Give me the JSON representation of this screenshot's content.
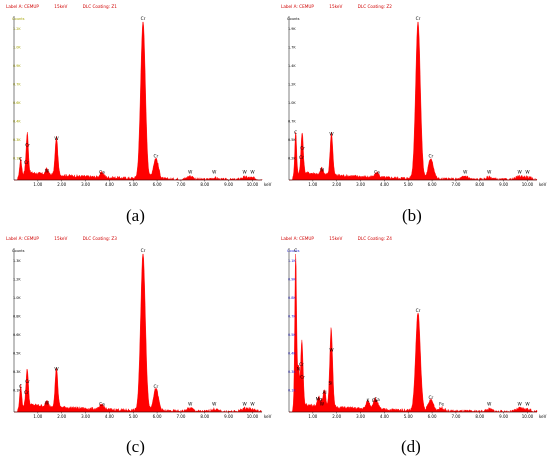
{
  "colors": {
    "spectrum": "#ff0000",
    "header": "#d00000",
    "axis": "#000000",
    "ytick_olive": "#a3a300",
    "ytick_blue": "#1b1bd8"
  },
  "chart_data": [
    {
      "type": "area",
      "caption": "(a)",
      "header": {
        "label": "Label A: CEMUP",
        "kv": "15keV",
        "sample": "DLC Coating: Z1"
      },
      "ylabel": "Counts",
      "xlabel": "keV",
      "xlim": [
        0,
        10.4
      ],
      "ylim": [
        0,
        1
      ],
      "xticks": [
        "1.00",
        "2.00",
        "3.00",
        "4.00",
        "5.00",
        "6.00",
        "7.00",
        "8.00",
        "9.00",
        "10.00"
      ],
      "yticks": [
        "1.2K",
        "1.0K",
        "0.9K",
        "0.7K",
        "0.6K",
        "0.4K",
        "0.3K",
        "0.1K"
      ],
      "ytick_color": "olive",
      "peaks": [
        {
          "x": 0.28,
          "y": 0.11,
          "label": "C"
        },
        {
          "x": 0.52,
          "y": 0.09,
          "label": "Cr"
        },
        {
          "x": 0.57,
          "y": 0.2,
          "label": "Cr"
        },
        {
          "x": 1.78,
          "y": 0.24,
          "label": "W"
        },
        {
          "x": 1.38,
          "y": 0.035,
          "label": "W"
        },
        {
          "x": 3.69,
          "y": 0.03,
          "label": "Ca"
        },
        {
          "x": 5.41,
          "y": 1.0,
          "label": "Cr"
        },
        {
          "x": 5.95,
          "y": 0.13,
          "label": "Cr"
        },
        {
          "x": 7.39,
          "y": 0.02,
          "label": "W"
        },
        {
          "x": 8.4,
          "y": 0.01,
          "label": "W"
        },
        {
          "x": 9.67,
          "y": 0.015,
          "label": "W"
        },
        {
          "x": 10.0,
          "y": 0.01,
          "label": "W"
        }
      ]
    },
    {
      "type": "area",
      "caption": "(b)",
      "header": {
        "label": "Label A: CEMUP",
        "kv": "15keV",
        "sample": "DLC Coating: Z2"
      },
      "ylabel": "Counts",
      "xlabel": "keV",
      "xlim": [
        0,
        10.4
      ],
      "ylim": [
        0,
        1
      ],
      "xticks": [
        "1.00",
        "2.00",
        "3.00",
        "4.00",
        "5.00",
        "6.00",
        "7.00",
        "8.00",
        "9.00",
        "10.00"
      ],
      "yticks": [
        "1.9K",
        "1.7K",
        "1.4K",
        "1.2K",
        "1.0K",
        "0.7K",
        "0.5K",
        "0.2K"
      ],
      "ytick_color": "black",
      "peaks": [
        {
          "x": 0.28,
          "y": 0.28,
          "label": "C"
        },
        {
          "x": 0.52,
          "y": 0.12,
          "label": "Cr"
        },
        {
          "x": 0.57,
          "y": 0.18,
          "label": "Cr"
        },
        {
          "x": 1.78,
          "y": 0.27,
          "label": "W"
        },
        {
          "x": 1.38,
          "y": 0.04,
          "label": "W"
        },
        {
          "x": 3.69,
          "y": 0.03,
          "label": "Ca"
        },
        {
          "x": 5.41,
          "y": 1.0,
          "label": "Cr"
        },
        {
          "x": 5.95,
          "y": 0.13,
          "label": "Cr"
        },
        {
          "x": 7.39,
          "y": 0.02,
          "label": "W"
        },
        {
          "x": 8.4,
          "y": 0.015,
          "label": "W"
        },
        {
          "x": 9.67,
          "y": 0.02,
          "label": "W"
        },
        {
          "x": 10.0,
          "y": 0.015,
          "label": "W"
        }
      ]
    },
    {
      "type": "area",
      "caption": "(c)",
      "header": {
        "label": "Label A: CEMUP",
        "kv": "15keV",
        "sample": "DLC Coating: Z3"
      },
      "ylabel": "Counts",
      "xlabel": "keV",
      "xlim": [
        0,
        10.4
      ],
      "ylim": [
        0,
        1
      ],
      "xticks": [
        "1.00",
        "2.00",
        "3.00",
        "4.00",
        "5.00",
        "6.00",
        "7.00",
        "8.00",
        "9.00",
        "10.00"
      ],
      "yticks": [
        "1.3K",
        "1.2K",
        "1.0K",
        "0.8K",
        "0.6K",
        "0.5K",
        "0.3K",
        "0.1K"
      ],
      "ytick_color": "black",
      "peaks": [
        {
          "x": 0.28,
          "y": 0.14,
          "label": "C"
        },
        {
          "x": 0.52,
          "y": 0.1,
          "label": "Cr"
        },
        {
          "x": 0.57,
          "y": 0.17,
          "label": "Cr"
        },
        {
          "x": 1.78,
          "y": 0.25,
          "label": "W"
        },
        {
          "x": 1.38,
          "y": 0.035,
          "label": "W"
        },
        {
          "x": 3.69,
          "y": 0.03,
          "label": "Ca"
        },
        {
          "x": 5.41,
          "y": 1.0,
          "label": "Cr"
        },
        {
          "x": 5.95,
          "y": 0.14,
          "label": "Cr"
        },
        {
          "x": 7.39,
          "y": 0.02,
          "label": "W"
        },
        {
          "x": 8.4,
          "y": 0.015,
          "label": "W"
        },
        {
          "x": 9.67,
          "y": 0.02,
          "label": "W"
        },
        {
          "x": 10.0,
          "y": 0.015,
          "label": "W"
        }
      ]
    },
    {
      "type": "area",
      "caption": "(d)",
      "header": {
        "label": "Label A: CEMUP",
        "kv": "15keV",
        "sample": "DLC Coating: Z4"
      },
      "ylabel": "Counts",
      "xlabel": "keV",
      "xlim": [
        0,
        10.4
      ],
      "ylim": [
        0,
        1
      ],
      "xticks": [
        "1.00",
        "2.00",
        "3.00",
        "4.00",
        "5.00",
        "6.00",
        "7.00",
        "8.00",
        "9.00",
        "10.00"
      ],
      "yticks": [
        "1.1K",
        "0.9K",
        "0.8K",
        "0.7K",
        "0.5K",
        "0.4K",
        "0.3K",
        "0.1K"
      ],
      "ytick_color": "blue",
      "peaks": [
        {
          "x": 0.28,
          "y": 1.0,
          "label": "C"
        },
        {
          "x": 0.4,
          "y": 0.25,
          "label": "N"
        },
        {
          "x": 0.52,
          "y": 0.28,
          "label": "Cr"
        },
        {
          "x": 0.57,
          "y": 0.2,
          "label": "Cr"
        },
        {
          "x": 1.25,
          "y": 0.06,
          "label": "Mg"
        },
        {
          "x": 1.49,
          "y": 0.1,
          "label": "Al"
        },
        {
          "x": 1.74,
          "y": 0.16,
          "label": "Si"
        },
        {
          "x": 1.78,
          "y": 0.37,
          "label": "W"
        },
        {
          "x": 1.38,
          "y": 0.03,
          "label": "W"
        },
        {
          "x": 3.31,
          "y": 0.05,
          "label": "K"
        },
        {
          "x": 3.59,
          "y": 0.05,
          "label": "Ca"
        },
        {
          "x": 3.69,
          "y": 0.03,
          "label": "Ca"
        },
        {
          "x": 5.41,
          "y": 0.62,
          "label": "Cr"
        },
        {
          "x": 5.95,
          "y": 0.07,
          "label": "Cr"
        },
        {
          "x": 6.4,
          "y": 0.02,
          "label": "Fe"
        },
        {
          "x": 8.4,
          "y": 0.015,
          "label": "W"
        },
        {
          "x": 9.67,
          "y": 0.02,
          "label": "W"
        },
        {
          "x": 10.0,
          "y": 0.015,
          "label": "W"
        }
      ]
    }
  ]
}
